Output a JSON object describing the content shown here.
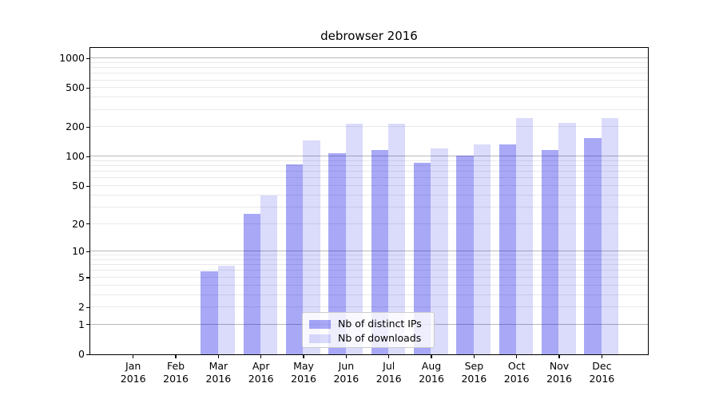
{
  "title": "debrowser 2016",
  "legend": {
    "items": [
      {
        "label": "Nb of distinct IPs",
        "color": "rgba(0,0,230,0.34)"
      },
      {
        "label": "Nb of downloads",
        "color": "rgba(0,0,230,0.14)"
      }
    ],
    "position": "lower center"
  },
  "y_axis": {
    "tick_values": [
      0,
      1,
      2,
      5,
      10,
      20,
      50,
      100,
      200,
      500,
      1000
    ],
    "tick_labels": [
      "0",
      "1",
      "2",
      "5",
      "10",
      "20",
      "50",
      "100",
      "200",
      "500",
      "1000"
    ]
  },
  "x_axis": {
    "year": "2016",
    "months": [
      "Jan",
      "Feb",
      "Mar",
      "Apr",
      "May",
      "Jun",
      "Jul",
      "Aug",
      "Sep",
      "Oct",
      "Nov",
      "Dec"
    ]
  },
  "chart_data": {
    "type": "bar",
    "title": "debrowser 2016",
    "categories": [
      "Jan 2016",
      "Feb 2016",
      "Mar 2016",
      "Apr 2016",
      "May 2016",
      "Jun 2016",
      "Jul 2016",
      "Aug 2016",
      "Sep 2016",
      "Oct 2016",
      "Nov 2016",
      "Dec 2016"
    ],
    "series": [
      {
        "name": "Nb of distinct IPs",
        "color": "rgba(0,0,230,0.34)",
        "values": [
          0,
          0,
          6,
          26,
          85,
          110,
          118,
          88,
          104,
          135,
          119,
          157
        ]
      },
      {
        "name": "Nb of downloads",
        "color": "rgba(0,0,230,0.14)",
        "values": [
          0,
          0,
          7,
          40,
          148,
          220,
          220,
          124,
          136,
          253,
          222,
          253
        ]
      }
    ],
    "yscale": "log10(1+x)",
    "ylim": [
      0,
      1000
    ],
    "yticks": [
      0,
      1,
      2,
      5,
      10,
      20,
      50,
      100,
      200,
      500,
      1000
    ],
    "grid": "major-and-minor, horizontal only",
    "legend_position": "lower center"
  },
  "colors": {
    "bar_distinct_ips": "rgba(0,0,230,0.34)",
    "bar_downloads": "rgba(0,0,230,0.14)",
    "grid_major": "#b8b8b8",
    "grid_minor": "#e9e9e9",
    "spine": "#000000",
    "background": "#ffffff"
  }
}
